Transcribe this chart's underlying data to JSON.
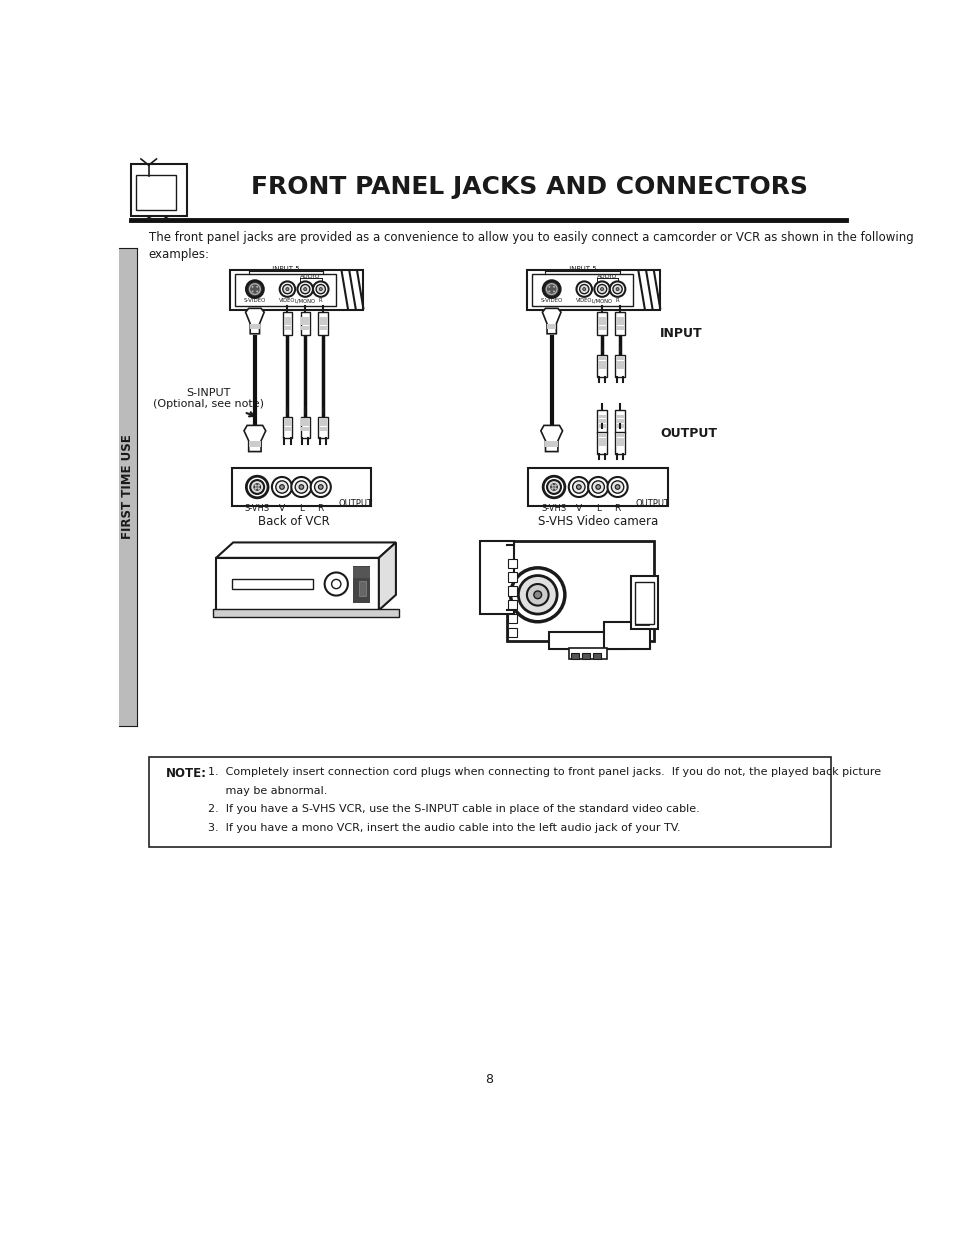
{
  "title": "FRONT PANEL JACKS AND CONNECTORS",
  "page_number": "8",
  "sidebar_text": "FIRST TIME USE",
  "intro_text": "The front panel jacks are provided as a convenience to allow you to easily connect a camcorder or VCR as shown in the following\nexamples:",
  "left_label1": "S-INPUT\n(Optional, see note)",
  "left_label2": "Back of VCR",
  "right_label1": "INPUT",
  "right_label2": "OUTPUT",
  "right_label3": "S-VHS Video camera",
  "note_label": "NOTE:",
  "note_line1": "1.  Completely insert connection cord plugs when connecting to front panel jacks.  If you do not, the played back picture",
  "note_line2": "     may be abnormal.",
  "note_line3": "2.  If you have a S-VHS VCR, use the S-INPUT cable in place of the standard video cable.",
  "note_line4": "3.  If you have a mono VCR, insert the audio cable into the left audio jack of your TV.",
  "bg_color": "#ffffff",
  "text_color": "#1a1a1a",
  "border_color": "#222222"
}
